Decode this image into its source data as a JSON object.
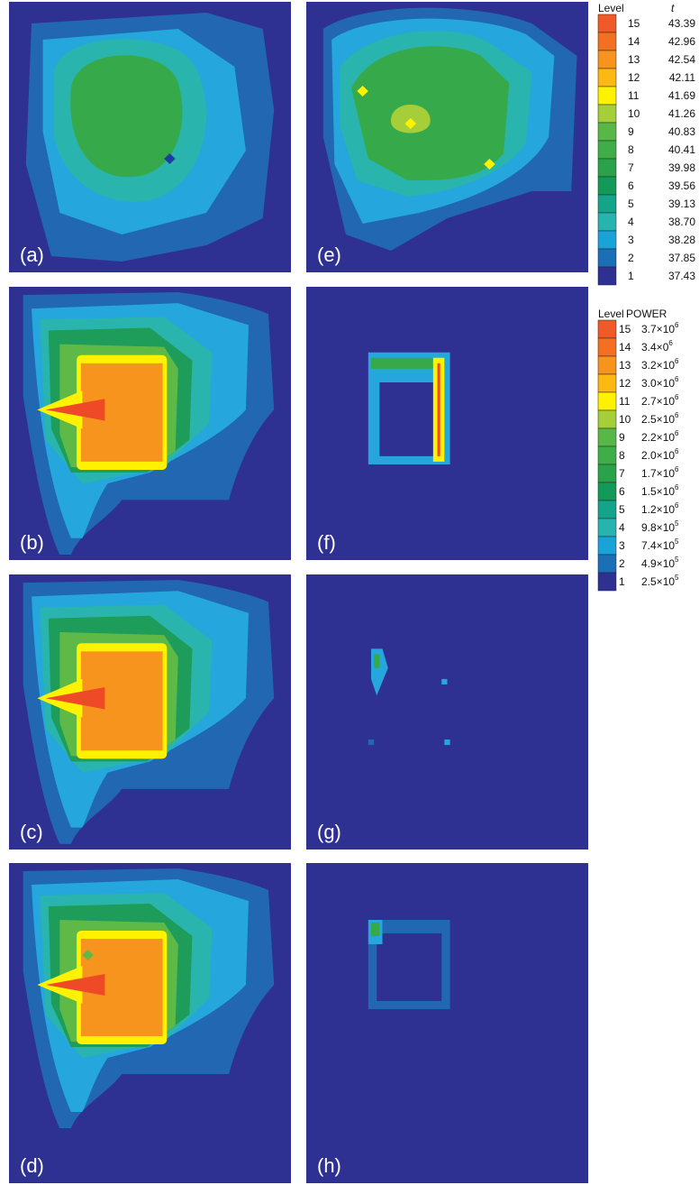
{
  "figure": {
    "panels": [
      {
        "label": "(a)"
      },
      {
        "label": "(b)"
      },
      {
        "label": "(c)"
      },
      {
        "label": "(d)"
      },
      {
        "label": "(e)"
      },
      {
        "label": "(f)"
      },
      {
        "label": "(g)"
      },
      {
        "label": "(h)"
      }
    ],
    "legend_t": {
      "header": [
        "Level",
        "t"
      ],
      "rows": [
        {
          "level": 15,
          "value": "43.39",
          "color": "#ef5a28"
        },
        {
          "level": 14,
          "value": "42.96",
          "color": "#f36f21"
        },
        {
          "level": 13,
          "value": "42.54",
          "color": "#f7941d"
        },
        {
          "level": 12,
          "value": "42.11",
          "color": "#fdb913"
        },
        {
          "level": 11,
          "value": "41.69",
          "color": "#fff200"
        },
        {
          "level": 10,
          "value": "41.26",
          "color": "#a6ce39"
        },
        {
          "level": 9,
          "value": "40.83",
          "color": "#58b847"
        },
        {
          "level": 8,
          "value": "40.41",
          "color": "#3fae49"
        },
        {
          "level": 7,
          "value": "39.98",
          "color": "#2aa24a"
        },
        {
          "level": 6,
          "value": "39.56",
          "color": "#149a58"
        },
        {
          "level": 5,
          "value": "39.13",
          "color": "#14a48a"
        },
        {
          "level": 4,
          "value": "38.70",
          "color": "#27b4b0"
        },
        {
          "level": 3,
          "value": "38.28",
          "color": "#19a3d9"
        },
        {
          "level": 2,
          "value": "37.85",
          "color": "#1b6fb7"
        },
        {
          "level": 1,
          "value": "37.43",
          "color": "#2e3192"
        }
      ]
    },
    "legend_power": {
      "header": [
        "Level",
        "POWER"
      ],
      "rows": [
        {
          "level": 15,
          "value": "3.7×10",
          "exponent": "6",
          "color": "#ef5a28"
        },
        {
          "level": 14,
          "value": "3.4×0",
          "exponent": "6",
          "color": "#f36f21"
        },
        {
          "level": 13,
          "value": "3.2×10",
          "exponent": "6",
          "color": "#f7941d"
        },
        {
          "level": 12,
          "value": "3.0×10",
          "exponent": "6",
          "color": "#fdb913"
        },
        {
          "level": 11,
          "value": "2.7×10",
          "exponent": "6",
          "color": "#fff200"
        },
        {
          "level": 10,
          "value": "2.5×10",
          "exponent": "6",
          "color": "#a6ce39"
        },
        {
          "level": 9,
          "value": "2.2×10",
          "exponent": "6",
          "color": "#58b847"
        },
        {
          "level": 8,
          "value": "2.0×10",
          "exponent": "6",
          "color": "#3fae49"
        },
        {
          "level": 7,
          "value": "1.7×10",
          "exponent": "6",
          "color": "#2aa24a"
        },
        {
          "level": 6,
          "value": "1.5×10",
          "exponent": "6",
          "color": "#149a58"
        },
        {
          "level": 5,
          "value": "1.2×10",
          "exponent": "6",
          "color": "#14a48a"
        },
        {
          "level": 4,
          "value": "9.8×10",
          "exponent": "5",
          "color": "#27b4b0"
        },
        {
          "level": 3,
          "value": "7.4×10",
          "exponent": "5",
          "color": "#19a3d9"
        },
        {
          "level": 2,
          "value": "4.9×10",
          "exponent": "5",
          "color": "#1b6fb7"
        },
        {
          "level": 1,
          "value": "2.5×10",
          "exponent": "5",
          "color": "#2e3192"
        }
      ]
    }
  }
}
